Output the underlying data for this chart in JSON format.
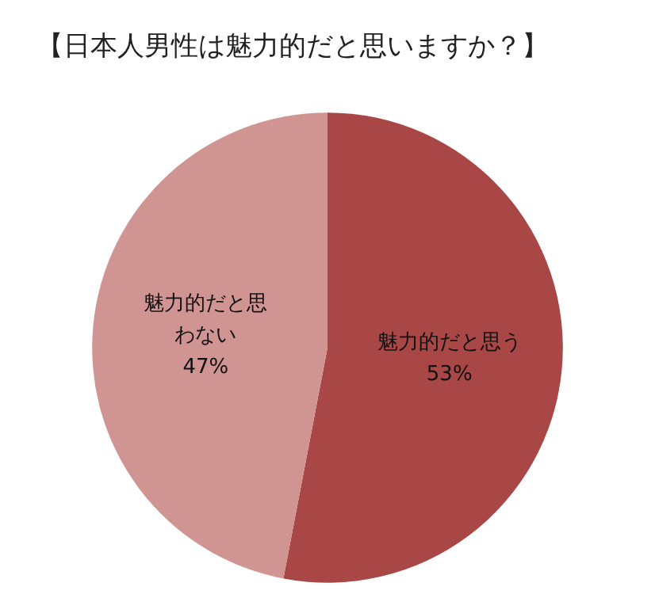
{
  "chart_data": {
    "type": "pie",
    "title": "【日本人男性は魅力的だと思いますか？】",
    "categories": [
      "魅力的だと思う",
      "魅力的だと思わない"
    ],
    "values": [
      53,
      47
    ],
    "colors": [
      "#a84745",
      "#d09492"
    ],
    "value_labels": [
      "53%",
      "47%"
    ],
    "legend": false
  }
}
